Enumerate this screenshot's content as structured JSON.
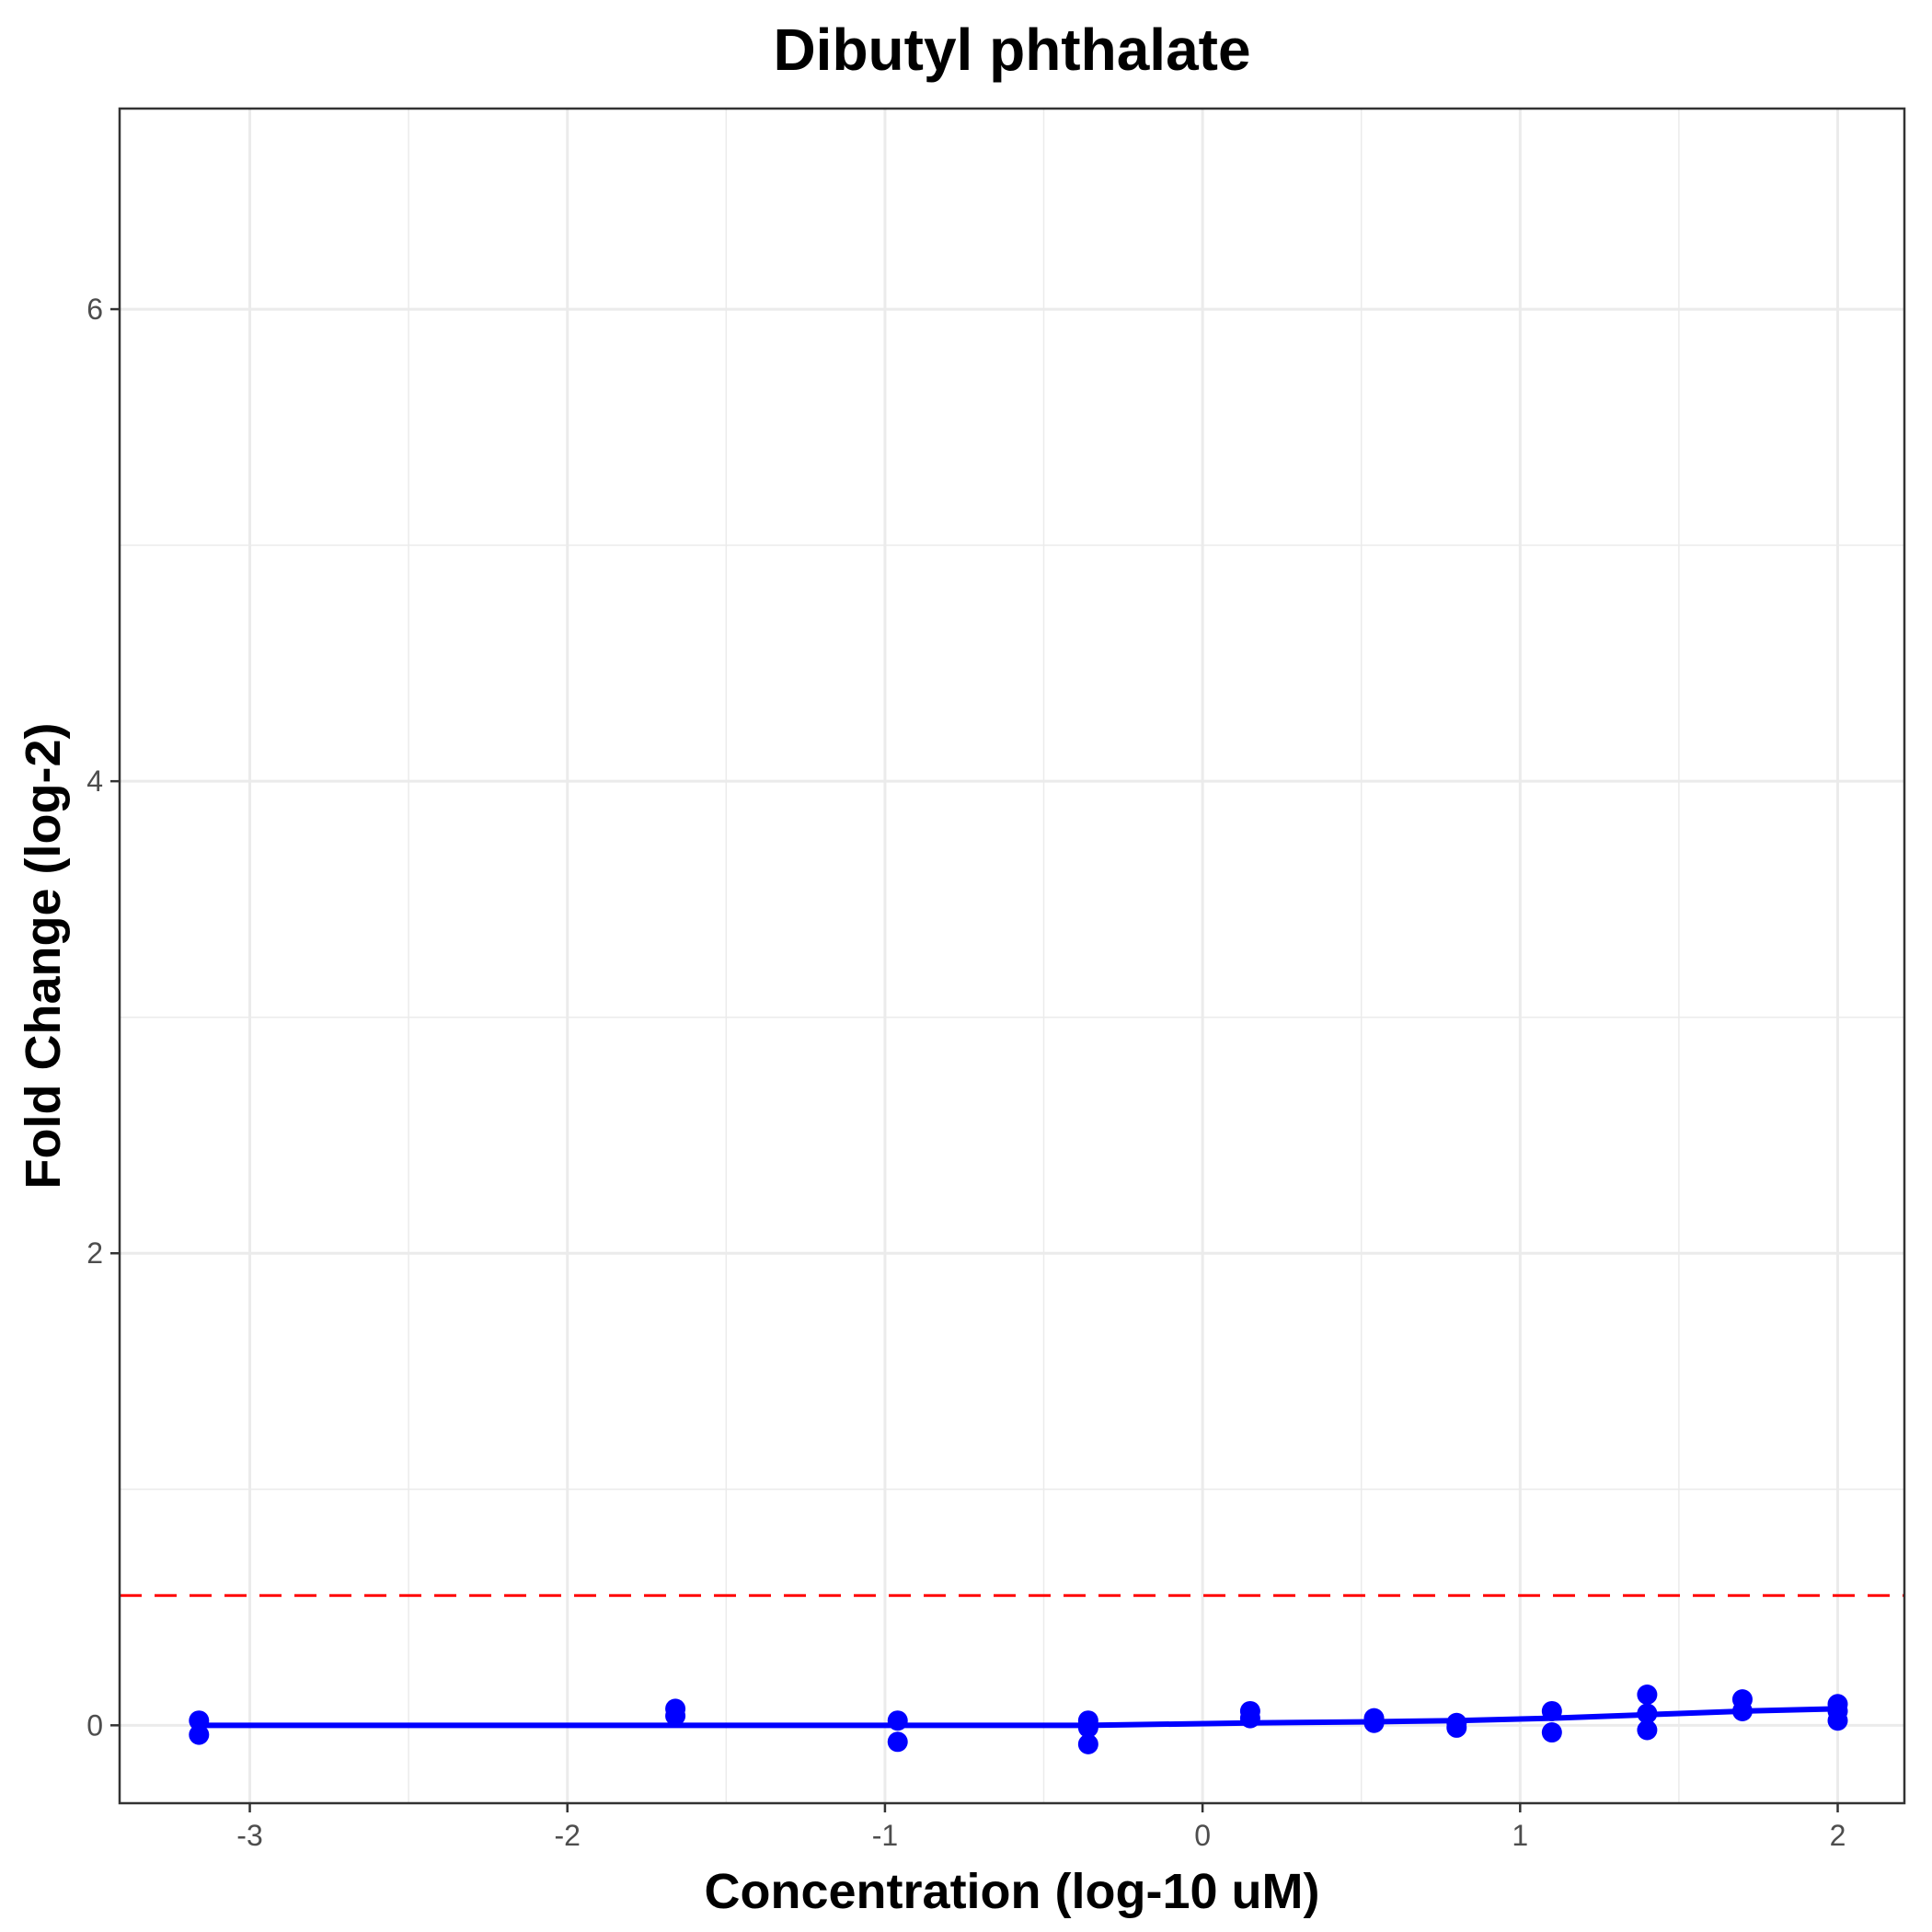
{
  "chart_data": {
    "type": "scatter",
    "title": "Dibutyl phthalate",
    "xlabel": "Concentration (log-10 uM)",
    "ylabel": "Fold Change (log-2)",
    "xlim": [
      -3.41,
      2.21
    ],
    "ylim": [
      -0.33,
      6.85
    ],
    "x_ticks": [
      -3,
      -2,
      -1,
      0,
      1,
      2
    ],
    "x_tick_labels": [
      "-3",
      "-2",
      "-1",
      "0",
      "1",
      "2"
    ],
    "y_ticks": [
      0,
      2,
      4,
      6
    ],
    "y_tick_labels": [
      "0",
      "2",
      "4",
      "6"
    ],
    "grid": true,
    "threshold": {
      "y": 0.55,
      "color": "#ff0000",
      "style": "dashed"
    },
    "series": [
      {
        "type": "scatter",
        "color": "#0000ff",
        "x": [
          -3.16,
          -3.16,
          -1.66,
          -1.66,
          -0.96,
          -0.96,
          -0.36,
          -0.36,
          -0.36,
          0.15,
          0.15,
          0.54,
          0.54,
          0.8,
          0.8,
          1.1,
          1.1,
          1.4,
          1.4,
          1.4,
          1.7,
          1.7,
          2.0,
          2.0,
          2.0
        ],
        "y": [
          0.02,
          -0.04,
          0.07,
          0.04,
          0.02,
          -0.07,
          0.02,
          -0.01,
          -0.08,
          0.06,
          0.03,
          0.03,
          0.01,
          0.01,
          -0.01,
          0.06,
          -0.03,
          0.13,
          0.05,
          -0.02,
          0.11,
          0.06,
          0.09,
          0.06,
          0.02
        ]
      },
      {
        "type": "line",
        "color": "#0000ff",
        "x": [
          -3.16,
          -1.66,
          -0.96,
          -0.36,
          0.15,
          0.54,
          0.8,
          1.1,
          1.4,
          1.7,
          2.0
        ],
        "y": [
          0.0,
          0.0,
          0.0,
          0.0,
          0.01,
          0.015,
          0.02,
          0.03,
          0.045,
          0.06,
          0.07
        ]
      }
    ]
  }
}
